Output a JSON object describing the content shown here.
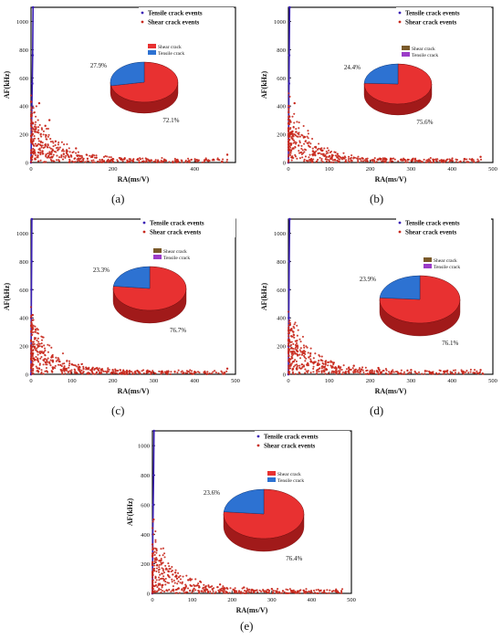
{
  "chart_data": [
    {
      "type": "scatter",
      "panel_label": "(a)",
      "xlabel": "RA(ms/V)",
      "ylabel": "AF(kHz)",
      "xlim": [
        0,
        500
      ],
      "ylim": [
        0,
        1100
      ],
      "xticks": [
        0,
        200,
        400
      ],
      "yticks": [
        0,
        200,
        400,
        600,
        800,
        1000
      ],
      "series": [
        {
          "name": "Tensile crack events",
          "color": "#3a1fb5",
          "points": [
            [
              0,
              0
            ],
            [
              1,
              190
            ],
            [
              2,
              390
            ],
            [
              3,
              560
            ],
            [
              4,
              760
            ],
            [
              5,
              1100
            ]
          ]
        },
        {
          "name": "Shear crack events",
          "color": "#c8281c",
          "points": [
            [
              5,
              280
            ],
            [
              15,
              120
            ],
            [
              20,
              420
            ],
            [
              28,
              80
            ],
            [
              35,
              260
            ],
            [
              45,
              300
            ],
            [
              60,
              150
            ],
            [
              80,
              60
            ],
            [
              110,
              100
            ],
            [
              150,
              40
            ],
            [
              200,
              25
            ],
            [
              260,
              20
            ],
            [
              330,
              12
            ],
            [
              410,
              15
            ],
            [
              480,
              55
            ]
          ]
        }
      ],
      "pie": {
        "slices": [
          {
            "name": "Shear crack",
            "value": 72.1,
            "color": "#e83131"
          },
          {
            "name": "Tensile crack",
            "value": 27.9,
            "color": "#2d72d2"
          }
        ],
        "labels": [
          "72.1%",
          "27.9%"
        ]
      }
    },
    {
      "type": "scatter",
      "panel_label": "(b)",
      "xlabel": "RA(ms/V)",
      "ylabel": "AF(kHz)",
      "xlim": [
        0,
        500
      ],
      "ylim": [
        0,
        1100
      ],
      "xticks": [
        0,
        100,
        200,
        300,
        400,
        500
      ],
      "yticks": [
        0,
        200,
        400,
        600,
        800,
        1000
      ],
      "series": [
        {
          "name": "Tensile crack events",
          "color": "#3a1fb5",
          "points": [
            [
              0,
              0
            ],
            [
              0.5,
              190
            ],
            [
              1,
              390
            ],
            [
              1.5,
              560
            ],
            [
              2,
              760
            ],
            [
              3,
              1100
            ]
          ]
        },
        {
          "name": "Shear crack events",
          "color": "#c8281c",
          "points": [
            [
              3,
              300
            ],
            [
              10,
              220
            ],
            [
              15,
              420
            ],
            [
              25,
              120
            ],
            [
              40,
              180
            ],
            [
              60,
              80
            ],
            [
              90,
              50
            ],
            [
              120,
              60
            ],
            [
              180,
              30
            ],
            [
              250,
              25
            ],
            [
              310,
              20
            ],
            [
              380,
              15
            ],
            [
              470,
              40
            ]
          ]
        }
      ],
      "pie": {
        "slices": [
          {
            "name": "Shear crack",
            "value": 75.6,
            "color": "#e83131"
          },
          {
            "name": "Tensile crack",
            "value": 24.4,
            "color": "#2d72d2"
          }
        ],
        "legend_colors": [
          "#7a5a2a",
          "#9b3cc8"
        ],
        "labels": [
          "75.6%",
          "24.4%"
        ]
      }
    },
    {
      "type": "scatter",
      "panel_label": "(c)",
      "xlabel": "RA(ms/V)",
      "ylabel": "AF(kHz)",
      "xlim": [
        0,
        500
      ],
      "ylim": [
        0,
        1100
      ],
      "xticks": [
        0,
        100,
        200,
        300,
        400,
        500
      ],
      "yticks": [
        0,
        200,
        400,
        600,
        800,
        1000
      ],
      "series": [
        {
          "name": "Tensile crack events",
          "color": "#3a1fb5",
          "points": [
            [
              0,
              0
            ],
            [
              0.3,
              200
            ],
            [
              0.6,
              400
            ],
            [
              1,
              600
            ],
            [
              1.5,
              800
            ],
            [
              2,
              1100
            ]
          ]
        },
        {
          "name": "Shear crack events",
          "color": "#c8281c",
          "points": [
            [
              4,
              420
            ],
            [
              10,
              300
            ],
            [
              18,
              200
            ],
            [
              30,
              150
            ],
            [
              50,
              120
            ],
            [
              70,
              90
            ],
            [
              100,
              70
            ],
            [
              150,
              40
            ],
            [
              200,
              30
            ],
            [
              260,
              25
            ],
            [
              320,
              20
            ],
            [
              400,
              15
            ],
            [
              480,
              40
            ]
          ]
        }
      ],
      "pie": {
        "slices": [
          {
            "name": "Shear crack",
            "value": 76.7,
            "color": "#e83131"
          },
          {
            "name": "Tensile crack",
            "value": 23.3,
            "color": "#2d72d2"
          }
        ],
        "legend_colors": [
          "#7a5a2a",
          "#9b3cc8"
        ],
        "labels": [
          "76.7%",
          "23.3%"
        ]
      }
    },
    {
      "type": "scatter",
      "panel_label": "(d)",
      "xlabel": "RA(ms/V)",
      "ylabel": "AF(kHz)",
      "xlim": [
        0,
        500
      ],
      "ylim": [
        0,
        1100
      ],
      "xticks": [
        0,
        100,
        200,
        300,
        400,
        500
      ],
      "yticks": [
        0,
        200,
        400,
        600,
        800,
        1000
      ],
      "series": [
        {
          "name": "Tensile crack events",
          "color": "#3a1fb5",
          "points": [
            [
              0,
              0
            ],
            [
              0.5,
              200
            ],
            [
              1,
              400
            ],
            [
              1.5,
              600
            ],
            [
              2,
              800
            ],
            [
              3,
              1100
            ]
          ]
        },
        {
          "name": "Shear crack events",
          "color": "#c8281c",
          "points": [
            [
              4,
              350
            ],
            [
              12,
              300
            ],
            [
              20,
              200
            ],
            [
              35,
              160
            ],
            [
              50,
              120
            ],
            [
              80,
              100
            ],
            [
              110,
              80
            ],
            [
              160,
              60
            ],
            [
              220,
              45
            ],
            [
              300,
              30
            ],
            [
              380,
              20
            ],
            [
              470,
              30
            ]
          ]
        }
      ],
      "pie": {
        "slices": [
          {
            "name": "Shear crack",
            "value": 76.1,
            "color": "#e83131"
          },
          {
            "name": "Tensile crack",
            "value": 23.9,
            "color": "#2d72d2"
          }
        ],
        "legend_colors": [
          "#7a5a2a",
          "#9b3cc8"
        ],
        "labels": [
          "76.1%",
          "23.9%"
        ]
      }
    },
    {
      "type": "scatter",
      "panel_label": "(e)",
      "xlabel": "RA(ms/V)",
      "ylabel": "AF(kHz)",
      "xlim": [
        0,
        500
      ],
      "ylim": [
        0,
        1100
      ],
      "xticks": [
        0,
        100,
        200,
        300,
        400,
        500
      ],
      "yticks": [
        0,
        200,
        400,
        600,
        800,
        1000
      ],
      "series": [
        {
          "name": "Tensile crack events",
          "color": "#3a1fb5",
          "points": [
            [
              0,
              0
            ],
            [
              0.5,
              200
            ],
            [
              1,
              400
            ],
            [
              2,
              600
            ],
            [
              3,
              800
            ],
            [
              4,
              1100
            ]
          ]
        },
        {
          "name": "Shear crack events",
          "color": "#c8281c",
          "points": [
            [
              3,
              500
            ],
            [
              10,
              300
            ],
            [
              20,
              220
            ],
            [
              40,
              150
            ],
            [
              60,
              120
            ],
            [
              90,
              90
            ],
            [
              120,
              80
            ],
            [
              170,
              60
            ],
            [
              230,
              40
            ],
            [
              300,
              30
            ],
            [
              380,
              20
            ],
            [
              460,
              15
            ]
          ]
        }
      ],
      "pie": {
        "slices": [
          {
            "name": "Shear crack",
            "value": 76.4,
            "color": "#e83131"
          },
          {
            "name": "Tensile crack",
            "value": 23.6,
            "color": "#2d72d2"
          }
        ],
        "legend_colors": [
          "#e83131",
          "#2d72d2"
        ],
        "labels": [
          "76.4%",
          "23.6%"
        ]
      }
    }
  ]
}
